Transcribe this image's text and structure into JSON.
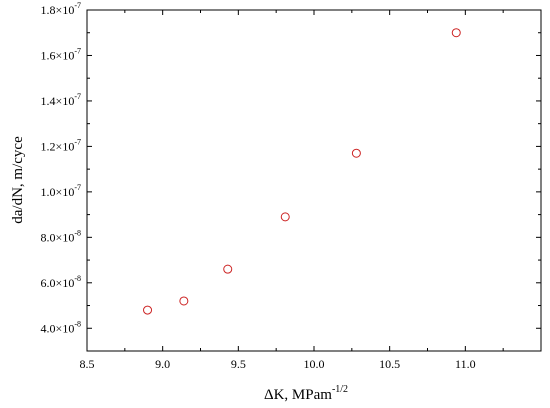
{
  "colors": {
    "marker": "#cc2222",
    "axes": "#000000"
  },
  "chart_data": {
    "type": "scatter",
    "title": "",
    "xlabel": {
      "prefix": "ΔK, MPam",
      "superscript": "-1/2"
    },
    "ylabel": "da/dN, m/cyce",
    "xlim": [
      8.5,
      11.5
    ],
    "ylim": [
      3e-08,
      1.8e-07
    ],
    "x_ticks": [
      {
        "value": 8.5,
        "label": "8.5"
      },
      {
        "value": 9.0,
        "label": "9.0"
      },
      {
        "value": 9.5,
        "label": "9.5"
      },
      {
        "value": 10.0,
        "label": "10.0"
      },
      {
        "value": 10.5,
        "label": "10.5"
      },
      {
        "value": 11.0,
        "label": "11.0"
      }
    ],
    "y_ticks": [
      {
        "value": 4e-08,
        "mantissa": "4.0×10",
        "exp": "-8"
      },
      {
        "value": 6e-08,
        "mantissa": "6.0×10",
        "exp": "-8"
      },
      {
        "value": 8e-08,
        "mantissa": "8.0×10",
        "exp": "-8"
      },
      {
        "value": 1e-07,
        "mantissa": "1.0×10",
        "exp": "-7"
      },
      {
        "value": 1.2e-07,
        "mantissa": "1.2×10",
        "exp": "-7"
      },
      {
        "value": 1.4e-07,
        "mantissa": "1.4×10",
        "exp": "-7"
      },
      {
        "value": 1.6e-07,
        "mantissa": "1.6×10",
        "exp": "-7"
      },
      {
        "value": 1.8e-07,
        "mantissa": "1.8×10",
        "exp": "-7"
      }
    ],
    "series": [
      {
        "marker": "open-circle",
        "points": [
          {
            "x": 8.9,
            "y": 4.8e-08
          },
          {
            "x": 9.14,
            "y": 5.2e-08
          },
          {
            "x": 9.43,
            "y": 6.6e-08
          },
          {
            "x": 9.81,
            "y": 8.9e-08
          },
          {
            "x": 10.28,
            "y": 1.17e-07
          },
          {
            "x": 10.94,
            "y": 1.7e-07
          }
        ]
      }
    ],
    "grid": false,
    "legend": "none"
  }
}
